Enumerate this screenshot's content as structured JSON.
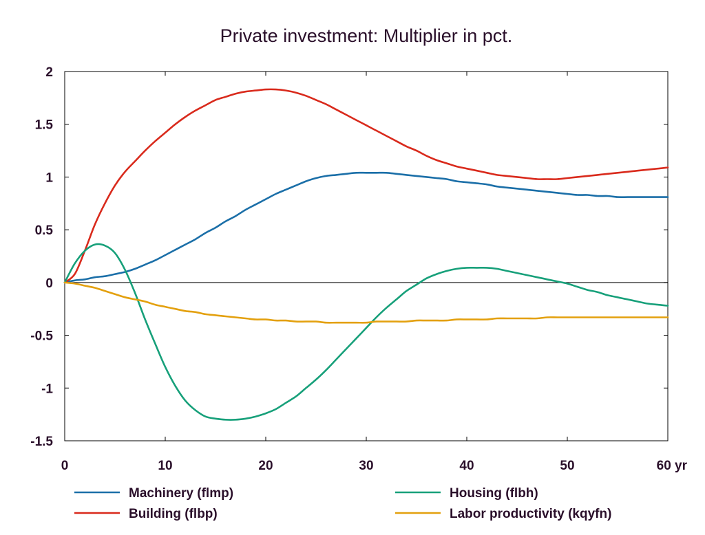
{
  "chart_data": {
    "type": "line",
    "title": "Private investment: Multiplier in pct.",
    "xlabel": "",
    "ylabel": "",
    "x_unit_label": "yr",
    "xlim": [
      0,
      60
    ],
    "ylim": [
      -1.5,
      2
    ],
    "x_ticks": [
      0,
      10,
      20,
      30,
      40,
      50,
      60
    ],
    "x_tick_labels": [
      "0",
      "10",
      "20",
      "30",
      "40",
      "50",
      "60 yr"
    ],
    "y_ticks": [
      2,
      1.5,
      1,
      0.5,
      0,
      -0.5,
      -1,
      -1.5
    ],
    "y_tick_labels": [
      "2",
      "1.5",
      "1",
      "0.5",
      "0",
      "-0.5",
      "-1",
      "-1.5"
    ],
    "grid": false,
    "zero_line": true,
    "legend_position": "bottom",
    "x": [
      0,
      1,
      2,
      3,
      4,
      5,
      6,
      7,
      8,
      9,
      10,
      11,
      12,
      13,
      14,
      15,
      16,
      17,
      18,
      19,
      20,
      21,
      22,
      23,
      24,
      25,
      26,
      27,
      28,
      29,
      30,
      31,
      32,
      33,
      34,
      35,
      36,
      37,
      38,
      39,
      40,
      41,
      42,
      43,
      44,
      45,
      46,
      47,
      48,
      49,
      50,
      51,
      52,
      53,
      54,
      55,
      56,
      57,
      58,
      59,
      60
    ],
    "series": [
      {
        "name": "Machinery (flmp)",
        "color": "#1b6fa8",
        "values": [
          0,
          0.02,
          0.03,
          0.05,
          0.06,
          0.08,
          0.1,
          0.13,
          0.17,
          0.21,
          0.26,
          0.31,
          0.36,
          0.41,
          0.47,
          0.52,
          0.58,
          0.63,
          0.69,
          0.74,
          0.79,
          0.84,
          0.88,
          0.92,
          0.96,
          0.99,
          1.01,
          1.02,
          1.03,
          1.04,
          1.04,
          1.04,
          1.04,
          1.03,
          1.02,
          1.01,
          1.0,
          0.99,
          0.98,
          0.96,
          0.95,
          0.94,
          0.93,
          0.91,
          0.9,
          0.89,
          0.88,
          0.87,
          0.86,
          0.85,
          0.84,
          0.83,
          0.83,
          0.82,
          0.82,
          0.81,
          0.81,
          0.81,
          0.81,
          0.81,
          0.81
        ]
      },
      {
        "name": "Building (flbp)",
        "color": "#d92a1c",
        "values": [
          0,
          0.08,
          0.3,
          0.55,
          0.75,
          0.92,
          1.05,
          1.15,
          1.25,
          1.34,
          1.42,
          1.5,
          1.57,
          1.63,
          1.68,
          1.73,
          1.76,
          1.79,
          1.81,
          1.82,
          1.83,
          1.83,
          1.82,
          1.8,
          1.77,
          1.73,
          1.69,
          1.64,
          1.59,
          1.54,
          1.49,
          1.44,
          1.39,
          1.34,
          1.29,
          1.25,
          1.2,
          1.16,
          1.13,
          1.1,
          1.08,
          1.06,
          1.04,
          1.02,
          1.01,
          1.0,
          0.99,
          0.98,
          0.98,
          0.98,
          0.99,
          1.0,
          1.01,
          1.02,
          1.03,
          1.04,
          1.05,
          1.06,
          1.07,
          1.08,
          1.09
        ]
      },
      {
        "name": "Housing (flbh)",
        "color": "#17a07a",
        "values": [
          0,
          0.18,
          0.3,
          0.36,
          0.35,
          0.28,
          0.12,
          -0.1,
          -0.35,
          -0.58,
          -0.8,
          -0.98,
          -1.12,
          -1.21,
          -1.27,
          -1.29,
          -1.3,
          -1.3,
          -1.29,
          -1.27,
          -1.24,
          -1.2,
          -1.14,
          -1.08,
          -1.0,
          -0.92,
          -0.83,
          -0.73,
          -0.63,
          -0.53,
          -0.43,
          -0.33,
          -0.24,
          -0.16,
          -0.08,
          -0.02,
          0.04,
          0.08,
          0.11,
          0.13,
          0.14,
          0.14,
          0.14,
          0.13,
          0.11,
          0.09,
          0.07,
          0.05,
          0.03,
          0.01,
          -0.01,
          -0.04,
          -0.07,
          -0.09,
          -0.12,
          -0.14,
          -0.16,
          -0.18,
          -0.2,
          -0.21,
          -0.22
        ]
      },
      {
        "name": "Labor productivity (kqyfn)",
        "color": "#e3a00e",
        "values": [
          0,
          -0.01,
          -0.03,
          -0.05,
          -0.08,
          -0.11,
          -0.14,
          -0.16,
          -0.18,
          -0.21,
          -0.23,
          -0.25,
          -0.27,
          -0.28,
          -0.3,
          -0.31,
          -0.32,
          -0.33,
          -0.34,
          -0.35,
          -0.35,
          -0.36,
          -0.36,
          -0.37,
          -0.37,
          -0.37,
          -0.38,
          -0.38,
          -0.38,
          -0.38,
          -0.38,
          -0.37,
          -0.37,
          -0.37,
          -0.37,
          -0.36,
          -0.36,
          -0.36,
          -0.36,
          -0.35,
          -0.35,
          -0.35,
          -0.35,
          -0.34,
          -0.34,
          -0.34,
          -0.34,
          -0.34,
          -0.33,
          -0.33,
          -0.33,
          -0.33,
          -0.33,
          -0.33,
          -0.33,
          -0.33,
          -0.33,
          -0.33,
          -0.33,
          -0.33,
          -0.33
        ]
      }
    ]
  }
}
